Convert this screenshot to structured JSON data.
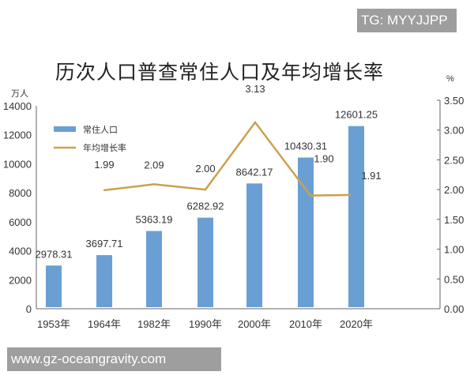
{
  "watermarks": {
    "top": "TG: MYYJJPP",
    "bottom": "www.gz-oceangravity.com"
  },
  "chart_data": {
    "type": "bar+line",
    "title": "历次人口普查常住人口及年均增长率",
    "categories": [
      "1953年",
      "1964年",
      "1982年",
      "1990年",
      "2000年",
      "2010年",
      "2020年"
    ],
    "series": [
      {
        "name": "常住人口",
        "type": "bar",
        "axis": "left",
        "color": "#6a9fd4",
        "values": [
          2978.31,
          3697.71,
          5363.19,
          6282.92,
          8642.17,
          10430.31,
          12601.25
        ]
      },
      {
        "name": "年均增长率",
        "type": "line",
        "axis": "right",
        "color": "#c9a24e",
        "values": [
          null,
          1.99,
          2.09,
          2.0,
          3.13,
          1.9,
          1.91
        ]
      }
    ],
    "left_axis": {
      "unit": "万人",
      "range": [
        0,
        14000
      ],
      "ticks": [
        "0",
        "2000",
        "4000",
        "6000",
        "8000",
        "10000",
        "12000",
        "14000"
      ]
    },
    "right_axis": {
      "unit": "%",
      "range": [
        0,
        3.5
      ],
      "ticks": [
        "0.00",
        "0.50",
        "1.00",
        "1.50",
        "2.00",
        "2.50",
        "3.00",
        "3.50"
      ]
    },
    "bar_labels": [
      "2978.31",
      "3697.71",
      "5363.19",
      "6282.92",
      "8642.17",
      "10430.31",
      "12601.25"
    ],
    "line_labels": [
      "",
      "1.99",
      "2.09",
      "2.00",
      "3.13",
      "1.90",
      "1.91"
    ],
    "legend": {
      "placement": "top-left"
    },
    "grid": false
  }
}
